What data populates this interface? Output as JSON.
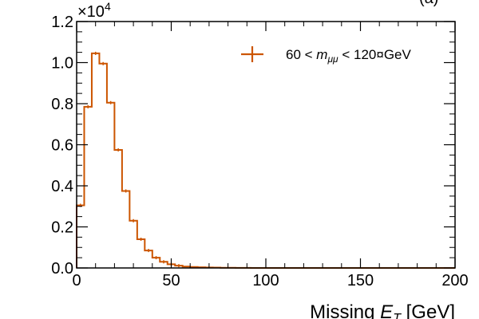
{
  "chart_data": {
    "type": "histogram",
    "xlabel_prefix": "Missing ",
    "xlabel_symbol": "E",
    "xlabel_sub": "T",
    "xlabel_suffix": " [GeV]",
    "ylabel": "",
    "y_multiplier_base": "×10",
    "y_multiplier_exp": "4",
    "y_multiplier_value": 10000,
    "xlim": [
      0,
      200
    ],
    "ylim": [
      0,
      1.2
    ],
    "x_ticks": [
      0,
      50,
      100,
      150,
      200
    ],
    "y_ticks": [
      0.0,
      0.2,
      0.4,
      0.6,
      0.8,
      1.0,
      1.2
    ],
    "x_tick_labels": [
      "0",
      "50",
      "100",
      "150",
      "200"
    ],
    "y_tick_labels": [
      "0.0",
      "0.2",
      "0.4",
      "0.6",
      "0.8",
      "1.0",
      "1.2"
    ],
    "grid": false,
    "legend_position": "top-right",
    "series": [
      {
        "name": "60 < m_μμ < 120 GeV",
        "legend_prefix": "60 < ",
        "legend_symbol": "m",
        "legend_sub": "μμ",
        "legend_suffix": " < 120¤GeV",
        "color": "#cc5500",
        "bin_width": 4,
        "bin_edges_start": 0,
        "values": [
          0.305,
          0.785,
          1.045,
          0.995,
          0.805,
          0.575,
          0.375,
          0.23,
          0.14,
          0.085,
          0.05,
          0.03,
          0.018,
          0.011,
          0.007,
          0.005,
          0.0035,
          0.0025,
          0.0018,
          0.0012,
          0.0008,
          0.0005,
          0.0003,
          0.0002,
          0.00015,
          0.0001,
          8e-05,
          6e-05,
          4e-05,
          3e-05,
          2e-05,
          2e-05,
          1e-05,
          1e-05,
          1e-05,
          0.0,
          0.0,
          0.0,
          0.0,
          0.0,
          0.0,
          0.0,
          0.0,
          0.0,
          0.0,
          0.0,
          0.0,
          0.0,
          0.0,
          0.0
        ]
      }
    ]
  }
}
